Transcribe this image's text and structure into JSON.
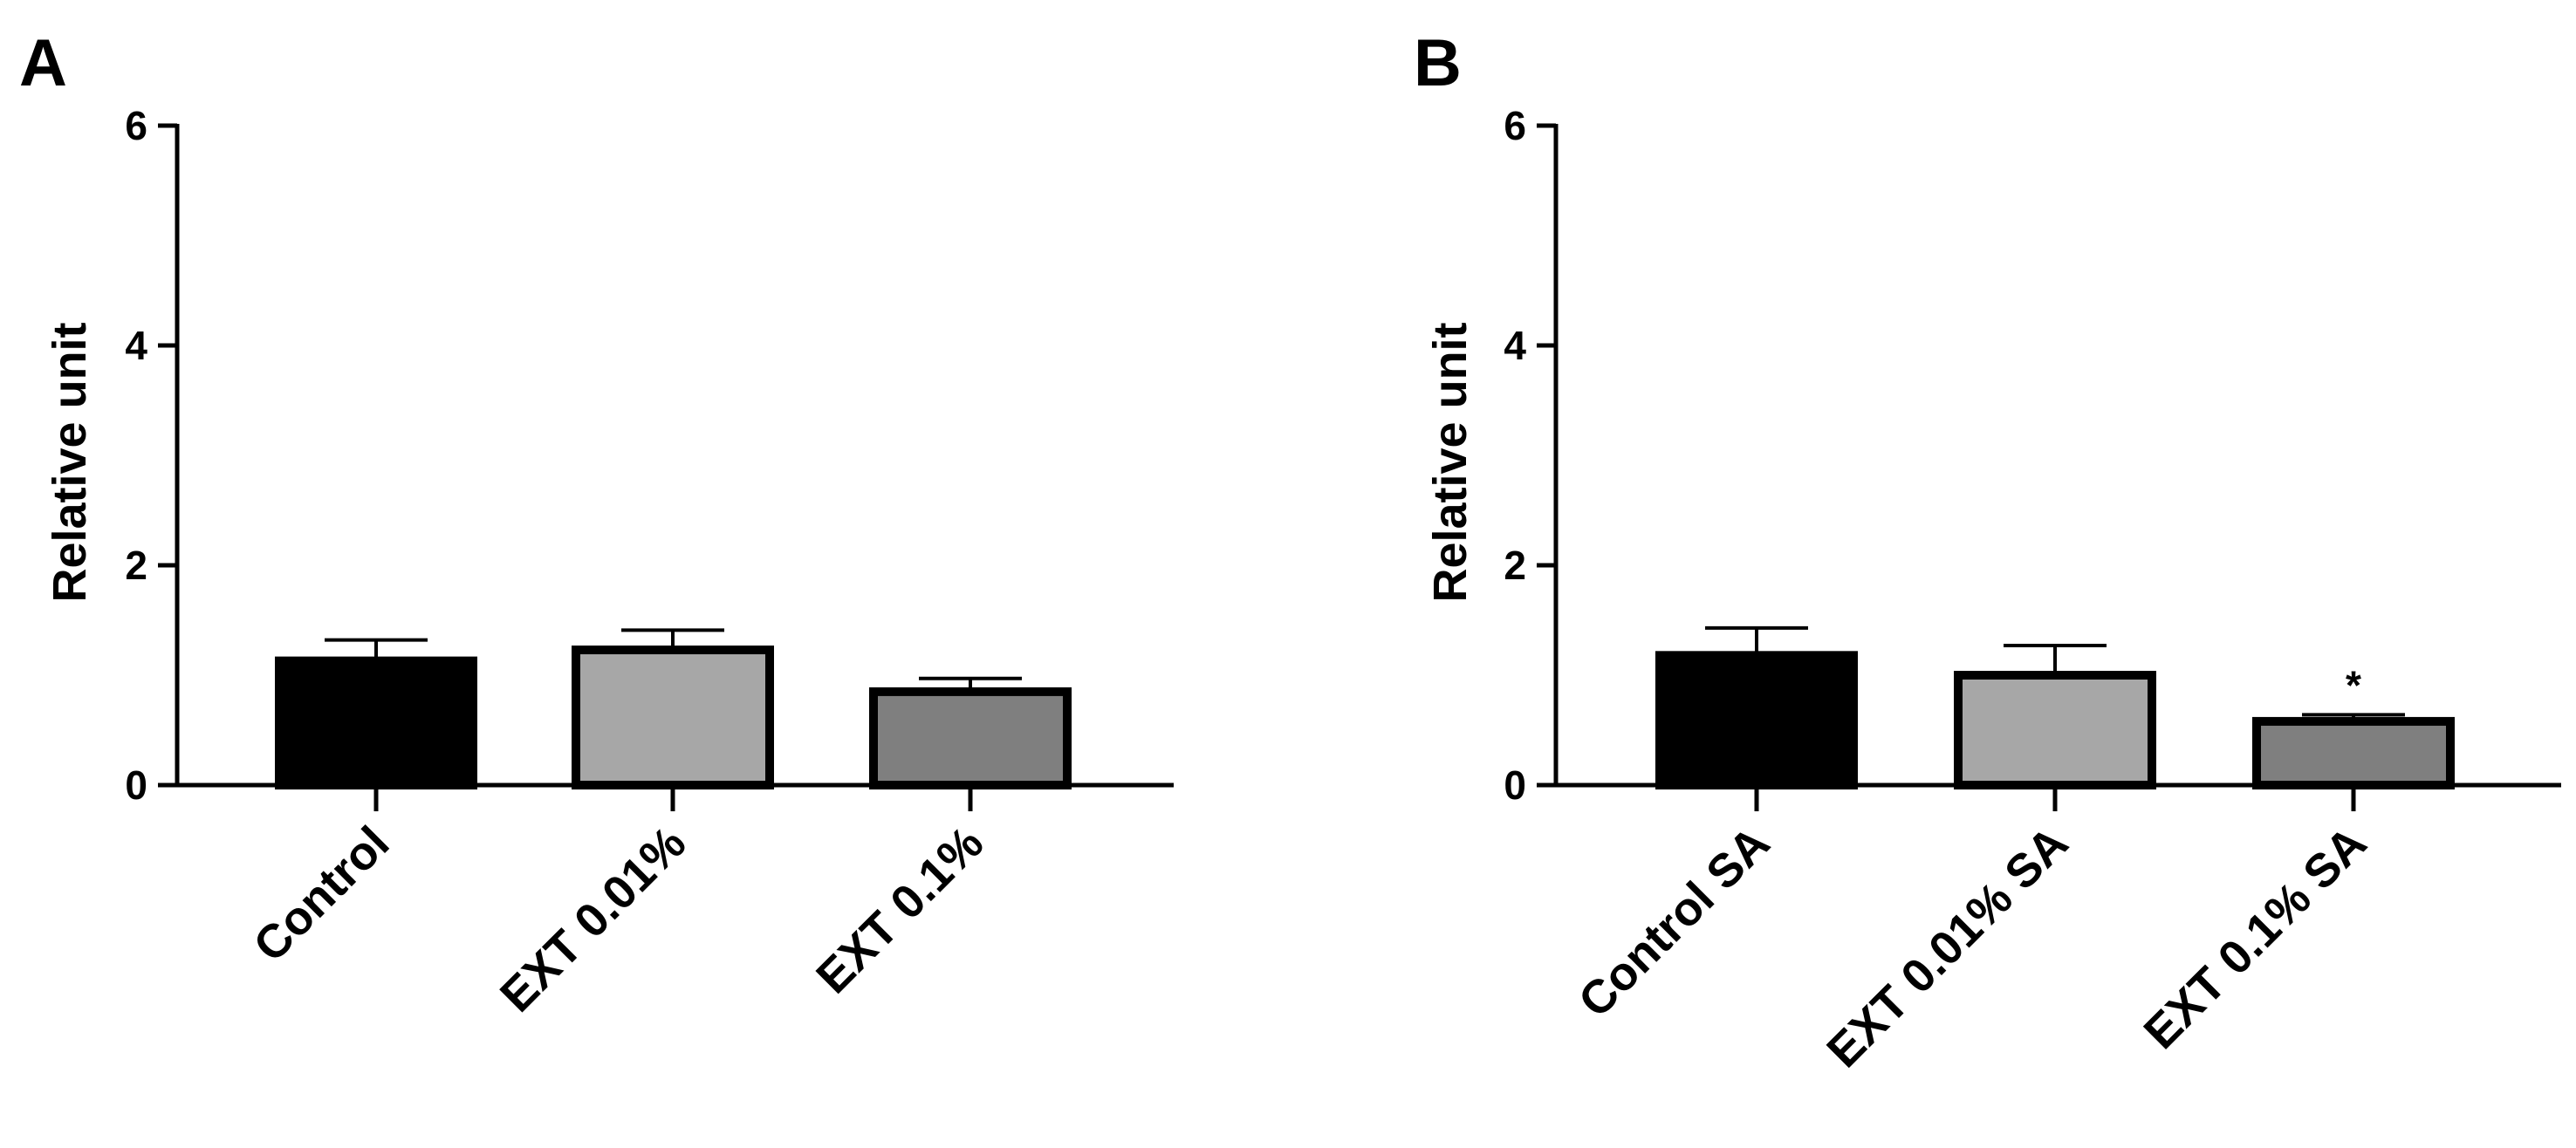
{
  "figure": {
    "panels": [
      "A",
      "B"
    ]
  },
  "chart_data": [
    {
      "panel": "A",
      "type": "bar",
      "title": "",
      "xlabel": "",
      "ylabel": "Relative unit",
      "ylim": [
        0,
        6
      ],
      "yticks": [
        "0",
        "2",
        "4",
        "6"
      ],
      "categories": [
        "Control",
        "EXT 0.01%",
        "EXT 0.1%"
      ],
      "values": [
        1.13,
        1.23,
        0.85
      ],
      "errors": [
        0.19,
        0.18,
        0.12
      ],
      "bar_colors": [
        "#000000",
        "#a7a7a7",
        "#7f7f7f"
      ],
      "annotations": [
        "",
        "",
        ""
      ]
    },
    {
      "panel": "B",
      "type": "bar",
      "title": "",
      "xlabel": "",
      "ylabel": "Relative unit",
      "ylim": [
        0,
        6
      ],
      "yticks": [
        "0",
        "2",
        "4",
        "6"
      ],
      "categories": [
        "Control SA",
        "EXT 0.01% SA",
        "EXT 0.1% SA"
      ],
      "values": [
        1.18,
        1.0,
        0.58
      ],
      "errors": [
        0.25,
        0.27,
        0.06
      ],
      "bar_colors": [
        "#000000",
        "#a7a7a7",
        "#7f7f7f"
      ],
      "annotations": [
        "",
        "",
        "*"
      ]
    }
  ]
}
